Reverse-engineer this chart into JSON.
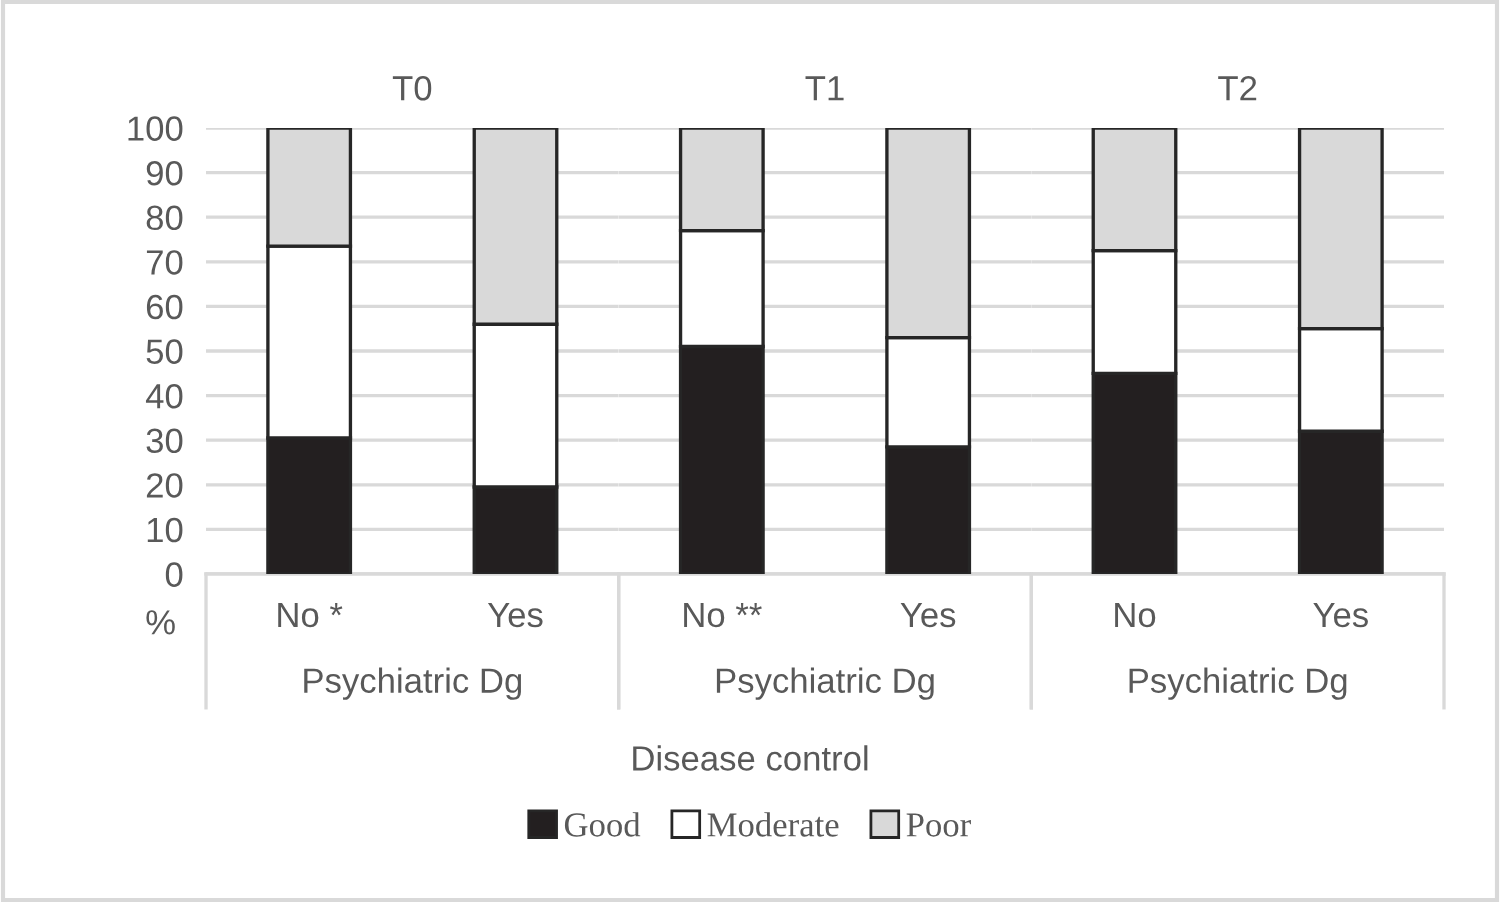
{
  "chart_data": [
    {
      "type": "bar",
      "title": "T0",
      "stacked": true,
      "categories": [
        "No *",
        "Yes"
      ],
      "xlabel": "Psychiatric Dg",
      "ylabel": "%",
      "ylim": [
        0,
        100
      ],
      "yticks": [
        0,
        10,
        20,
        30,
        40,
        50,
        60,
        70,
        80,
        90,
        100
      ],
      "grid": "y",
      "legend": "bottom",
      "legend_title": "Disease control",
      "series": [
        {
          "name": "Good",
          "color": "#231f20",
          "values": [
            30.5,
            19.5
          ]
        },
        {
          "name": "Moderate",
          "color": "#ffffff",
          "values": [
            43,
            36.5
          ]
        },
        {
          "name": "Poor",
          "color": "#d9d9d9",
          "values": [
            26.5,
            44
          ]
        }
      ]
    },
    {
      "type": "bar",
      "title": "T1",
      "stacked": true,
      "categories": [
        "No **",
        "Yes"
      ],
      "xlabel": "Psychiatric Dg",
      "ylim": [
        0,
        100
      ],
      "yticks": [
        0,
        10,
        20,
        30,
        40,
        50,
        60,
        70,
        80,
        90,
        100
      ],
      "grid": "y",
      "tick_labels": "x",
      "series": [
        {
          "color": "#231f20",
          "values": [
            51,
            28.5
          ]
        },
        {
          "color": "#ffffff",
          "values": [
            26,
            24.5
          ]
        },
        {
          "color": "#d9d9d9",
          "values": [
            23,
            47
          ]
        }
      ]
    },
    {
      "type": "bar",
      "title": "T2",
      "stacked": true,
      "categories": [
        "No",
        "Yes"
      ],
      "xlabel": "Psychiatric Dg",
      "ylim": [
        0,
        100
      ],
      "yticks": [
        0,
        10,
        20,
        30,
        40,
        50,
        60,
        70,
        80,
        90,
        100
      ],
      "grid": "y",
      "tick_labels": "x",
      "series": [
        {
          "color": "#231f20",
          "values": [
            45,
            32
          ]
        },
        {
          "color": "#ffffff",
          "values": [
            27.5,
            23
          ]
        },
        {
          "color": "#d9d9d9",
          "values": [
            27.5,
            45
          ]
        }
      ]
    }
  ]
}
